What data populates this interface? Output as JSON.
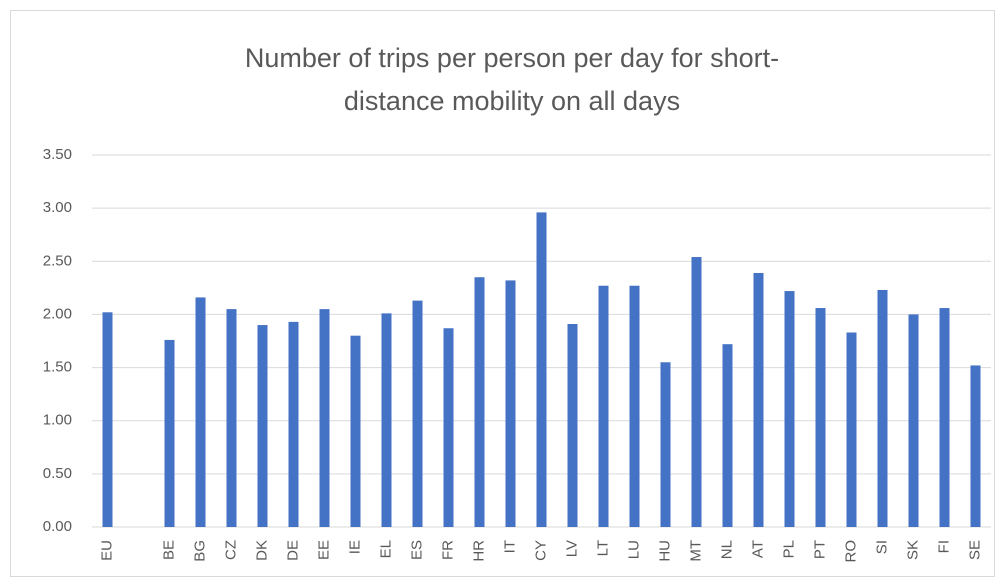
{
  "chart_data": {
    "type": "bar",
    "title": [
      "Number of trips per person per day for short-",
      "distance mobility on all days"
    ],
    "categories": [
      "EU",
      null,
      "BE",
      "BG",
      "CZ",
      "DK",
      "DE",
      "EE",
      "IE",
      "EL",
      "ES",
      "FR",
      "HR",
      "IT",
      "CY",
      "LV",
      "LT",
      "LU",
      "HU",
      "MT",
      "NL",
      "AT",
      "PL",
      "PT",
      "RO",
      "SI",
      "SK",
      "FI",
      "SE"
    ],
    "values": [
      2.02,
      null,
      1.76,
      2.16,
      2.05,
      1.9,
      1.93,
      2.05,
      1.8,
      2.01,
      2.13,
      1.87,
      2.35,
      2.32,
      2.96,
      1.91,
      2.27,
      2.27,
      1.55,
      2.54,
      1.72,
      2.39,
      2.22,
      2.06,
      1.83,
      2.23,
      2.0,
      2.06,
      1.52
    ],
    "color": "#4472c4",
    "ylim": [
      0,
      3.5
    ],
    "yticks": [
      {
        "value": 0,
        "label": "0.00"
      },
      {
        "value": 0.5,
        "label": "0.50"
      },
      {
        "value": 1,
        "label": "1.00"
      },
      {
        "value": 1.5,
        "label": "1.50"
      },
      {
        "value": 2,
        "label": "2.00"
      },
      {
        "value": 2.5,
        "label": "2.50"
      },
      {
        "value": 3,
        "label": "3.00"
      },
      {
        "value": 3.5,
        "label": "3.50"
      }
    ],
    "grid": true
  }
}
